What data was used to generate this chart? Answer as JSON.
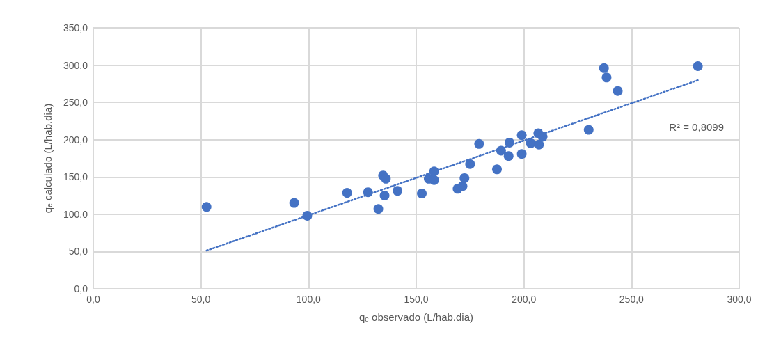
{
  "chart_data": {
    "type": "scatter",
    "xlabel": "q$_{e}$ observado (L/hab.dia)",
    "ylabel": "q$_{e}$ calculado (L/hab.dia)",
    "xlim": [
      0,
      300
    ],
    "xticks": [
      {
        "value": 0,
        "label": "0,0"
      },
      {
        "value": 50,
        "label": "50,0"
      },
      {
        "value": 100,
        "label": "100,0"
      },
      {
        "value": 150,
        "label": "150,0"
      },
      {
        "value": 200,
        "label": "200,0"
      },
      {
        "value": 250,
        "label": "250,0"
      },
      {
        "value": 300,
        "label": "300,0"
      }
    ],
    "ylim": [
      0,
      350
    ],
    "yticks": [
      {
        "value": 0,
        "label": "0,0"
      },
      {
        "value": 50,
        "label": "50,0"
      },
      {
        "value": 100,
        "label": "100,0"
      },
      {
        "value": 150,
        "label": "150,0"
      },
      {
        "value": 200,
        "label": "200,0"
      },
      {
        "value": 250,
        "label": "250,0"
      },
      {
        "value": 300,
        "label": "300,0"
      },
      {
        "value": 350,
        "label": "350,0"
      }
    ],
    "grid": true,
    "marker": "circle",
    "series": [
      {
        "color": "#4472c4",
        "x": [
          52.6,
          93.3,
          99.4,
          117.9,
          127.6,
          132.4,
          134.6,
          135.3,
          135.9,
          141.3,
          152.6,
          155.8,
          158.3,
          158.3,
          169.2,
          171.5,
          172.4,
          175.0,
          179.2,
          187.5,
          189.4,
          192.9,
          193.3,
          199.0,
          199.0,
          203.2,
          206.7,
          207.0,
          208.7,
          230.1,
          237.2,
          238.4,
          243.6,
          280.8
        ],
        "values": [
          109.8,
          115.2,
          98.1,
          128.7,
          129.6,
          107.1,
          152.0,
          125.1,
          147.6,
          131.4,
          127.8,
          147.6,
          157.4,
          145.8,
          134.1,
          137.7,
          148.5,
          167.3,
          194.3,
          160.2,
          185.3,
          178.1,
          196.1,
          206.0,
          180.8,
          195.2,
          208.7,
          193.4,
          204.0,
          213.2,
          296.0,
          283.4,
          265.4,
          298.7
        ]
      },
      {
        "type": "line",
        "color": "#4472c4",
        "line_style": "dotted",
        "marker": "none",
        "x": [
          52.6,
          280.8
        ],
        "values": [
          51.3,
          279.8
        ]
      }
    ],
    "annotations": [
      "R² = 0,8099"
    ]
  }
}
